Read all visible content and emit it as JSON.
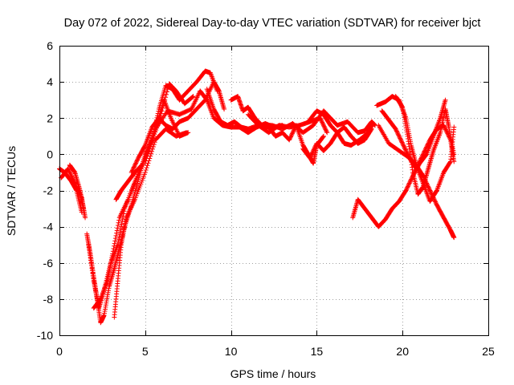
{
  "chart_data": {
    "type": "scatter",
    "title": "Day 072 of 2022, Sidereal Day-to-day VTEC variation (SDTVAR) for receiver bjct",
    "xlabel": "GPS time / hours",
    "ylabel": "SDTVAR / TECUs",
    "xlim": [
      0,
      25
    ],
    "ylim": [
      -10,
      6
    ],
    "xticks": [
      0,
      5,
      10,
      15,
      20,
      25
    ],
    "yticks": [
      -10,
      -8,
      -6,
      -4,
      -2,
      0,
      2,
      4,
      6
    ],
    "grid": true,
    "marker": "plus",
    "color": "#ff0000",
    "tracks": [
      {
        "points": [
          [
            0,
            -0.8
          ],
          [
            0.3,
            -1.0
          ],
          [
            0.7,
            -1.5
          ],
          [
            1.0,
            -2.0
          ],
          [
            1.3,
            -3.2
          ]
        ]
      },
      {
        "points": [
          [
            0.1,
            -1.3
          ],
          [
            0.5,
            -0.8
          ],
          [
            0.9,
            -1.6
          ],
          [
            1.3,
            -2.4
          ],
          [
            1.5,
            -3.5
          ]
        ]
      },
      {
        "points": [
          [
            0.6,
            -0.6
          ],
          [
            0.9,
            -1.0
          ],
          [
            1.2,
            -2.0
          ],
          [
            1.4,
            -3.0
          ]
        ]
      },
      {
        "points": [
          [
            1.6,
            -4.4
          ],
          [
            1.8,
            -5.5
          ],
          [
            2.0,
            -6.8
          ],
          [
            2.2,
            -8.0
          ],
          [
            2.4,
            -9.3
          ],
          [
            2.6,
            -8.9
          ],
          [
            2.9,
            -7.3
          ],
          [
            3.2,
            -6.3
          ],
          [
            3.5,
            -5.2
          ],
          [
            3.8,
            -4.0
          ],
          [
            4.2,
            -2.8
          ],
          [
            4.6,
            -1.4
          ],
          [
            5.0,
            0.0
          ],
          [
            5.4,
            0.8
          ],
          [
            5.8,
            2.5
          ],
          [
            6.2,
            3.8
          ],
          [
            6.6,
            3.6
          ],
          [
            7.0,
            3.0
          ],
          [
            7.5,
            3.5
          ],
          [
            8.0,
            4.0
          ],
          [
            8.5,
            4.6
          ],
          [
            8.8,
            4.5
          ],
          [
            9.2,
            3.5
          ]
        ]
      },
      {
        "points": [
          [
            1.7,
            -5.0
          ],
          [
            2.0,
            -7.0
          ],
          [
            2.3,
            -8.5
          ],
          [
            2.6,
            -7.5
          ],
          [
            3.0,
            -6.0
          ],
          [
            3.4,
            -5.0
          ],
          [
            3.8,
            -3.0
          ],
          [
            4.4,
            -1.6
          ],
          [
            5.0,
            -0.2
          ],
          [
            5.6,
            1.5
          ],
          [
            6.1,
            3.0
          ],
          [
            6.5,
            2.0
          ],
          [
            7.0,
            1.0
          ],
          [
            7.5,
            1.2
          ]
        ]
      },
      {
        "points": [
          [
            2.0,
            -8.5
          ],
          [
            2.4,
            -8.0
          ],
          [
            2.8,
            -7.0
          ],
          [
            3.1,
            -5.5
          ],
          [
            3.5,
            -3.5
          ],
          [
            4.0,
            -2.5
          ],
          [
            4.6,
            -1.0
          ],
          [
            5.2,
            0.2
          ],
          [
            5.8,
            1.8
          ],
          [
            6.4,
            3.9
          ],
          [
            6.8,
            3.5
          ],
          [
            7.3,
            2.8
          ],
          [
            7.8,
            3.2
          ]
        ]
      },
      {
        "points": [
          [
            3.2,
            -9.0
          ],
          [
            3.4,
            -7.0
          ],
          [
            3.6,
            -5.0
          ],
          [
            3.9,
            -3.5
          ],
          [
            4.4,
            -2.5
          ],
          [
            5.0,
            -1.0
          ],
          [
            5.6,
            0.8
          ],
          [
            6.2,
            1.4
          ],
          [
            6.8,
            1.0
          ],
          [
            7.4,
            1.2
          ]
        ]
      },
      {
        "points": [
          [
            3.3,
            -2.5
          ],
          [
            3.6,
            -2.0
          ],
          [
            4.0,
            -1.5
          ],
          [
            4.4,
            -1.0
          ],
          [
            4.8,
            -0.6
          ]
        ]
      },
      {
        "points": [
          [
            4.2,
            -1.0
          ],
          [
            4.6,
            -0.2
          ],
          [
            5.0,
            0.5
          ],
          [
            5.4,
            1.5
          ],
          [
            5.8,
            2.0
          ],
          [
            6.2,
            1.6
          ],
          [
            6.6,
            1.4
          ],
          [
            7.0,
            1.8
          ],
          [
            7.5,
            2.0
          ],
          [
            8.0,
            2.5
          ],
          [
            8.5,
            3.0
          ],
          [
            9.0,
            4.0
          ],
          [
            9.3,
            3.5
          ],
          [
            9.6,
            2.5
          ]
        ]
      },
      {
        "points": [
          [
            5.0,
            -0.5
          ],
          [
            5.6,
            1.4
          ],
          [
            6.3,
            2.4
          ],
          [
            7.0,
            2.2
          ],
          [
            7.7,
            2.5
          ],
          [
            8.2,
            3.5
          ],
          [
            8.6,
            3.0
          ],
          [
            9.0,
            2.0
          ],
          [
            9.5,
            1.6
          ],
          [
            10.0,
            1.5
          ],
          [
            10.5,
            1.5
          ],
          [
            11.0,
            1.2
          ],
          [
            11.5,
            1.5
          ],
          [
            12.0,
            1.7
          ],
          [
            12.5,
            1.5
          ],
          [
            13.0,
            1.6
          ]
        ]
      },
      {
        "points": [
          [
            8.6,
            3.6
          ],
          [
            9.0,
            2.5
          ],
          [
            9.4,
            1.8
          ],
          [
            9.8,
            1.6
          ],
          [
            10.2,
            1.8
          ],
          [
            10.6,
            1.5
          ],
          [
            11.0,
            1.4
          ],
          [
            11.6,
            1.6
          ],
          [
            12.2,
            1.2
          ],
          [
            12.8,
            1.6
          ],
          [
            13.4,
            1.5
          ],
          [
            14.0,
            1.6
          ],
          [
            14.6,
            1.8
          ],
          [
            15.2,
            2.0
          ],
          [
            15.6,
            1.2
          ]
        ]
      },
      {
        "points": [
          [
            10.0,
            3.0
          ],
          [
            10.4,
            3.2
          ],
          [
            10.7,
            2.4
          ],
          [
            11.0,
            2.6
          ],
          [
            11.4,
            2.0
          ],
          [
            11.8,
            1.6
          ],
          [
            12.2,
            1.5
          ],
          [
            12.6,
            1.0
          ],
          [
            13.0,
            1.2
          ],
          [
            13.4,
            0.8
          ],
          [
            13.8,
            1.6
          ],
          [
            14.2,
            0.5
          ],
          [
            14.5,
            0.0
          ],
          [
            14.8,
            -0.5
          ],
          [
            15.0,
            0.5
          ],
          [
            15.4,
            1.0
          ]
        ]
      },
      {
        "points": [
          [
            11.0,
            2.2
          ],
          [
            11.6,
            1.6
          ],
          [
            12.4,
            1.6
          ],
          [
            13.0,
            1.4
          ],
          [
            13.6,
            1.7
          ],
          [
            14.2,
            1.2
          ],
          [
            14.8,
            1.6
          ],
          [
            15.4,
            2.4
          ],
          [
            15.8,
            2.0
          ],
          [
            16.2,
            1.6
          ],
          [
            16.8,
            1.8
          ],
          [
            17.4,
            1.2
          ],
          [
            17.8,
            1.3
          ],
          [
            18.2,
            1.8
          ],
          [
            18.4,
            1.6
          ]
        ]
      },
      {
        "points": [
          [
            14.5,
            1.8
          ],
          [
            15.0,
            2.4
          ],
          [
            15.4,
            2.2
          ],
          [
            15.8,
            1.6
          ],
          [
            16.2,
            1.2
          ],
          [
            16.6,
            0.6
          ],
          [
            17.0,
            0.5
          ],
          [
            17.5,
            0.8
          ],
          [
            18.0,
            1.2
          ],
          [
            18.2,
            1.6
          ]
        ]
      },
      {
        "points": [
          [
            14.2,
            0.3
          ],
          [
            14.6,
            -0.2
          ],
          [
            15.0,
            0.6
          ],
          [
            15.4,
            0.2
          ],
          [
            15.8,
            0.6
          ],
          [
            16.2,
            1.2
          ],
          [
            16.6,
            1.5
          ],
          [
            17.0,
            1.0
          ],
          [
            17.4,
            0.6
          ],
          [
            17.8,
            0.8
          ],
          [
            18.2,
            1.4
          ]
        ]
      },
      {
        "points": [
          [
            17.1,
            -3.5
          ],
          [
            17.4,
            -2.5
          ],
          [
            17.8,
            -3.0
          ],
          [
            18.2,
            -3.5
          ],
          [
            18.6,
            -4.0
          ],
          [
            19.0,
            -3.6
          ],
          [
            19.4,
            -3.0
          ],
          [
            19.8,
            -2.6
          ],
          [
            20.2,
            -2.0
          ],
          [
            20.6,
            -1.2
          ],
          [
            21.0,
            -0.5
          ],
          [
            21.4,
            0.0
          ],
          [
            21.8,
            1.0
          ],
          [
            22.2,
            2.0
          ],
          [
            22.5,
            3.0
          ]
        ]
      },
      {
        "points": [
          [
            18.5,
            2.7
          ],
          [
            19.0,
            2.9
          ],
          [
            19.4,
            3.2
          ],
          [
            19.8,
            3.0
          ],
          [
            20.2,
            2.0
          ],
          [
            20.5,
            0.5
          ],
          [
            20.8,
            -0.6
          ],
          [
            21.2,
            -1.2
          ],
          [
            21.6,
            -2.0
          ],
          [
            22.0,
            -2.8
          ],
          [
            22.4,
            -3.5
          ],
          [
            22.8,
            -4.2
          ],
          [
            23.0,
            -4.6
          ]
        ]
      },
      {
        "points": [
          [
            18.8,
            2.4
          ],
          [
            19.2,
            1.9
          ],
          [
            19.6,
            1.4
          ],
          [
            20.0,
            0.6
          ],
          [
            20.4,
            -0.2
          ],
          [
            20.8,
            -0.8
          ],
          [
            21.2,
            0.0
          ],
          [
            21.6,
            0.8
          ],
          [
            22.0,
            1.4
          ],
          [
            22.4,
            1.6
          ],
          [
            22.8,
            0.8
          ],
          [
            23.0,
            -0.4
          ]
        ]
      },
      {
        "points": [
          [
            18.6,
            1.6
          ],
          [
            19.2,
            0.6
          ],
          [
            19.8,
            0.2
          ],
          [
            20.4,
            -0.2
          ],
          [
            20.8,
            -0.6
          ],
          [
            21.2,
            -1.6
          ],
          [
            21.6,
            -2.6
          ],
          [
            22.0,
            -2.0
          ],
          [
            22.4,
            -1.0
          ],
          [
            22.8,
            -0.4
          ],
          [
            23.0,
            1.5
          ]
        ]
      },
      {
        "points": [
          [
            19.6,
            3.2
          ],
          [
            20.0,
            2.6
          ],
          [
            20.3,
            1.0
          ],
          [
            20.6,
            -1.0
          ],
          [
            20.9,
            -2.2
          ],
          [
            21.2,
            -1.8
          ],
          [
            21.5,
            -0.8
          ],
          [
            21.8,
            0.2
          ],
          [
            22.2,
            1.2
          ],
          [
            22.5,
            2.5
          ],
          [
            22.7,
            1.5
          ],
          [
            23.0,
            0.0
          ]
        ]
      }
    ]
  }
}
